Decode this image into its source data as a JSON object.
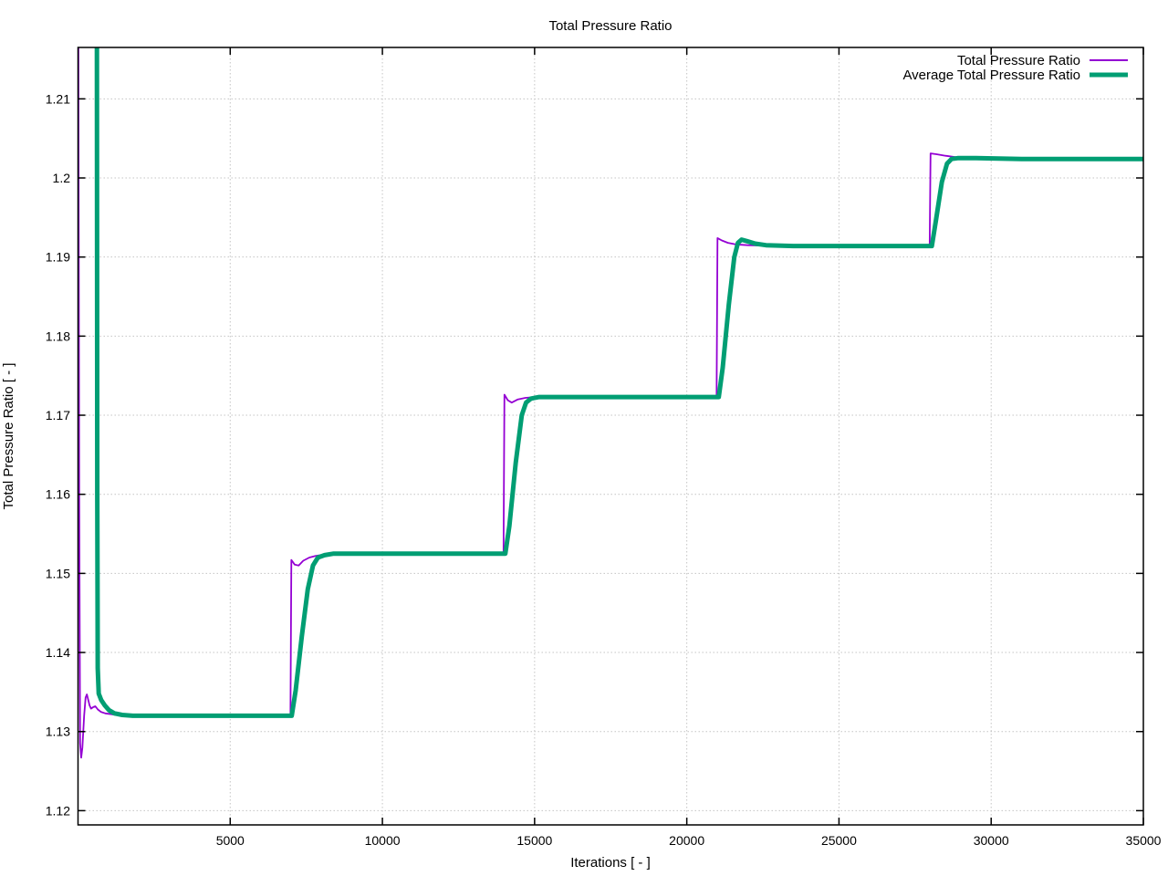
{
  "chart_data": {
    "type": "line",
    "title": "Total Pressure Ratio",
    "xlabel": "Iterations [ - ]",
    "ylabel": "Total Pressure Ratio [ - ]",
    "xlim": [
      0,
      35000
    ],
    "ylim": [
      1.1182,
      1.2165
    ],
    "grid": true,
    "legend_position": "top-right-inside",
    "axis_color": "#000000",
    "grid_color": "#c4c4c4",
    "background_color": "#ffffff",
    "x_ticks": [
      {
        "value": 5000,
        "label": "5000"
      },
      {
        "value": 10000,
        "label": "10000"
      },
      {
        "value": 15000,
        "label": "15000"
      },
      {
        "value": 20000,
        "label": "20000"
      },
      {
        "value": 25000,
        "label": "25000"
      },
      {
        "value": 30000,
        "label": "30000"
      },
      {
        "value": 35000,
        "label": "35000"
      }
    ],
    "y_ticks": [
      {
        "value": 1.12,
        "label": "1.12"
      },
      {
        "value": 1.13,
        "label": "1.13"
      },
      {
        "value": 1.14,
        "label": "1.14"
      },
      {
        "value": 1.15,
        "label": "1.15"
      },
      {
        "value": 1.16,
        "label": "1.16"
      },
      {
        "value": 1.17,
        "label": "1.17"
      },
      {
        "value": 1.18,
        "label": "1.18"
      },
      {
        "value": 1.19,
        "label": "1.19"
      },
      {
        "value": 1.2,
        "label": "1.2"
      },
      {
        "value": 1.21,
        "label": "1.21"
      }
    ],
    "series": [
      {
        "name": "Total Pressure Ratio",
        "color": "#9400d3",
        "width": 1.8,
        "points": [
          [
            5,
            1.23
          ],
          [
            40,
            1.16
          ],
          [
            70,
            1.1285
          ],
          [
            105,
            1.1267
          ],
          [
            145,
            1.128
          ],
          [
            200,
            1.132
          ],
          [
            250,
            1.1343
          ],
          [
            290,
            1.1347
          ],
          [
            330,
            1.1341
          ],
          [
            380,
            1.1333
          ],
          [
            430,
            1.1329
          ],
          [
            500,
            1.1331
          ],
          [
            570,
            1.1332
          ],
          [
            650,
            1.1328
          ],
          [
            750,
            1.1325
          ],
          [
            900,
            1.1323
          ],
          [
            1100,
            1.1322
          ],
          [
            1400,
            1.132
          ],
          [
            2000,
            1.132
          ],
          [
            3500,
            1.132
          ],
          [
            5000,
            1.132
          ],
          [
            6980,
            1.132
          ],
          [
            7010,
            1.1517
          ],
          [
            7120,
            1.1511
          ],
          [
            7250,
            1.151
          ],
          [
            7400,
            1.1516
          ],
          [
            7600,
            1.152
          ],
          [
            7800,
            1.1522
          ],
          [
            8100,
            1.1524
          ],
          [
            9000,
            1.1525
          ],
          [
            12000,
            1.1525
          ],
          [
            13980,
            1.1525
          ],
          [
            14010,
            1.1726
          ],
          [
            14120,
            1.1719
          ],
          [
            14250,
            1.1716
          ],
          [
            14450,
            1.172
          ],
          [
            14700,
            1.1722
          ],
          [
            15000,
            1.1723
          ],
          [
            17000,
            1.1723
          ],
          [
            20980,
            1.1723
          ],
          [
            21010,
            1.1924
          ],
          [
            21150,
            1.1921
          ],
          [
            21350,
            1.1918
          ],
          [
            21600,
            1.1916
          ],
          [
            22000,
            1.1915
          ],
          [
            23000,
            1.1914
          ],
          [
            25000,
            1.1914
          ],
          [
            27980,
            1.1914
          ],
          [
            28010,
            1.2031
          ],
          [
            28200,
            1.203
          ],
          [
            28500,
            1.2028
          ],
          [
            28900,
            1.2026
          ],
          [
            29500,
            1.2025
          ],
          [
            31000,
            1.2024
          ],
          [
            35000,
            1.2024
          ]
        ]
      },
      {
        "name": "Average Total Pressure Ratio",
        "color": "#009e73",
        "width": 5,
        "points": [
          [
            618,
            1.23
          ],
          [
            632,
            1.16
          ],
          [
            648,
            1.138
          ],
          [
            680,
            1.1348
          ],
          [
            760,
            1.134
          ],
          [
            880,
            1.1333
          ],
          [
            1020,
            1.1327
          ],
          [
            1200,
            1.1323
          ],
          [
            1450,
            1.1321
          ],
          [
            1800,
            1.132
          ],
          [
            2500,
            1.132
          ],
          [
            4500,
            1.132
          ],
          [
            7020,
            1.132
          ],
          [
            7150,
            1.1352
          ],
          [
            7350,
            1.142
          ],
          [
            7550,
            1.148
          ],
          [
            7720,
            1.151
          ],
          [
            7880,
            1.152
          ],
          [
            8100,
            1.1523
          ],
          [
            8400,
            1.1525
          ],
          [
            10000,
            1.1525
          ],
          [
            14040,
            1.1525
          ],
          [
            14170,
            1.156
          ],
          [
            14380,
            1.164
          ],
          [
            14580,
            1.17
          ],
          [
            14720,
            1.1716
          ],
          [
            14880,
            1.1721
          ],
          [
            15150,
            1.1723
          ],
          [
            17000,
            1.1723
          ],
          [
            21050,
            1.1723
          ],
          [
            21180,
            1.176
          ],
          [
            21380,
            1.184
          ],
          [
            21560,
            1.19
          ],
          [
            21680,
            1.1918
          ],
          [
            21800,
            1.1922
          ],
          [
            21980,
            1.192
          ],
          [
            22250,
            1.1917
          ],
          [
            22600,
            1.1915
          ],
          [
            23500,
            1.1914
          ],
          [
            26000,
            1.1914
          ],
          [
            28050,
            1.1914
          ],
          [
            28180,
            1.1945
          ],
          [
            28380,
            1.1995
          ],
          [
            28550,
            1.2018
          ],
          [
            28700,
            1.2024
          ],
          [
            28900,
            1.2025
          ],
          [
            29500,
            1.2025
          ],
          [
            31000,
            1.2024
          ],
          [
            35000,
            1.2024
          ]
        ]
      }
    ]
  }
}
